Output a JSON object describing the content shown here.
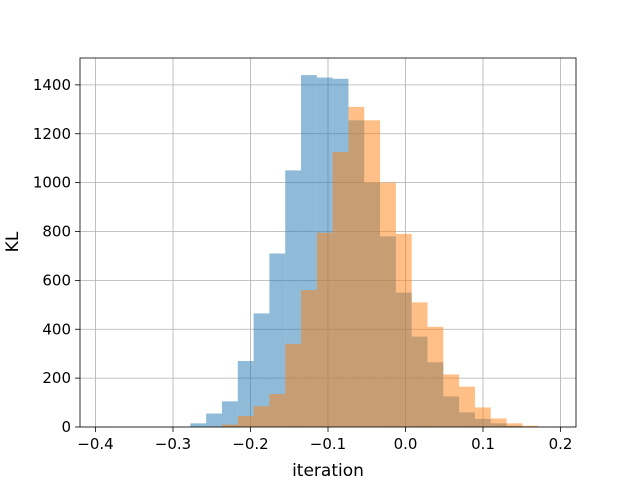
{
  "chart_data": {
    "type": "histogram",
    "title": "",
    "xlabel": "iteration",
    "ylabel": "KL",
    "xlim": [
      -0.42,
      0.22
    ],
    "ylim": [
      0,
      1510
    ],
    "xticks": [
      -0.4,
      -0.3,
      -0.2,
      -0.1,
      0.0,
      0.1,
      0.2
    ],
    "xtick_labels": [
      "−0.4",
      "−0.3",
      "−0.2",
      "−0.1",
      "0.0",
      "0.1",
      "0.2"
    ],
    "yticks": [
      0,
      200,
      400,
      600,
      800,
      1000,
      1200,
      1400
    ],
    "ytick_labels": [
      "0",
      "200",
      "400",
      "600",
      "800",
      "1000",
      "1200",
      "1400"
    ],
    "grid": true,
    "legend": "none",
    "series": [
      {
        "color": "#1f77b4",
        "alpha": 0.5,
        "bin_start": -0.4,
        "bin_width": 0.0204,
        "counts": [
          1,
          0,
          0,
          0,
          0,
          2,
          15,
          55,
          105,
          270,
          465,
          710,
          1050,
          1440,
          1430,
          1425,
          1255,
          1000,
          780,
          550,
          370,
          265,
          125,
          60,
          33,
          15,
          5,
          1,
          0,
          1
        ]
      },
      {
        "color": "#ff7f0e",
        "alpha": 0.5,
        "bin_start": -0.4,
        "bin_width": 0.0204,
        "counts": [
          0,
          0,
          0,
          0,
          0,
          0,
          0,
          2,
          10,
          45,
          85,
          135,
          340,
          560,
          795,
          1125,
          1310,
          1255,
          1000,
          790,
          510,
          410,
          215,
          165,
          80,
          35,
          15,
          5,
          1,
          0
        ]
      }
    ]
  }
}
